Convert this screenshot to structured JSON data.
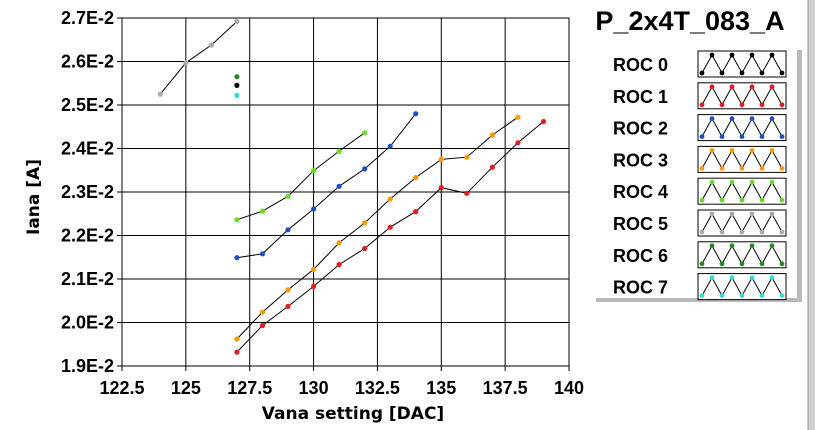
{
  "chart_data": {
    "type": "line",
    "title": "P_2x4T_083_A",
    "xlabel": "Vana setting [DAC]",
    "ylabel": "Iana [A]",
    "xlim": [
      122.5,
      140
    ],
    "ylim": [
      0.019,
      0.027
    ],
    "x_ticks": [
      "122.5",
      "125",
      "127.5",
      "130",
      "132.5",
      "135",
      "137.5",
      "140"
    ],
    "y_ticks": [
      "1.9E-2",
      "2.0E-2",
      "2.1E-2",
      "2.2E-2",
      "2.3E-2",
      "2.4E-2",
      "2.5E-2",
      "2.6E-2",
      "2.7E-2"
    ],
    "grid": true,
    "legend_position": "right",
    "series": [
      {
        "name": "ROC 0",
        "color": "#000000",
        "x": [
          127
        ],
        "y": [
          0.02545
        ]
      },
      {
        "name": "ROC 1",
        "color": "#e41a1c",
        "x": [
          127,
          128,
          129,
          130,
          131,
          132,
          133,
          134,
          135,
          136,
          137,
          138,
          139
        ],
        "y": [
          0.01932,
          0.01993,
          0.02037,
          0.02083,
          0.02133,
          0.0217,
          0.02219,
          0.02255,
          0.0231,
          0.02297,
          0.02357,
          0.02413,
          0.02462
        ]
      },
      {
        "name": "ROC 2",
        "color": "#1a4fc9",
        "x": [
          127,
          128,
          129,
          130,
          131,
          132,
          133,
          134
        ],
        "y": [
          0.02149,
          0.02158,
          0.02213,
          0.02261,
          0.02313,
          0.02353,
          0.02405,
          0.0248
        ]
      },
      {
        "name": "ROC 3",
        "color": "#ff9900",
        "x": [
          127,
          128,
          129,
          130,
          131,
          132,
          133,
          134,
          135,
          136,
          137,
          138
        ],
        "y": [
          0.01962,
          0.02024,
          0.02075,
          0.02122,
          0.02183,
          0.02229,
          0.02284,
          0.02333,
          0.02375,
          0.0238,
          0.02431,
          0.02472
        ]
      },
      {
        "name": "ROC 4",
        "color": "#66dd22",
        "x": [
          127,
          128,
          129,
          130,
          131,
          132
        ],
        "y": [
          0.02236,
          0.02256,
          0.0229,
          0.02349,
          0.02394,
          0.02436
        ]
      },
      {
        "name": "ROC 5",
        "color": "#aaaaaa",
        "x": [
          124,
          125,
          126,
          127
        ],
        "y": [
          0.02525,
          0.02597,
          0.02638,
          0.02692
        ]
      },
      {
        "name": "ROC 6",
        "color": "#1e8c1e",
        "x": [
          127
        ],
        "y": [
          0.02565
        ]
      },
      {
        "name": "ROC 7",
        "color": "#33dddd",
        "x": [
          127
        ],
        "y": [
          0.02522
        ]
      }
    ]
  }
}
